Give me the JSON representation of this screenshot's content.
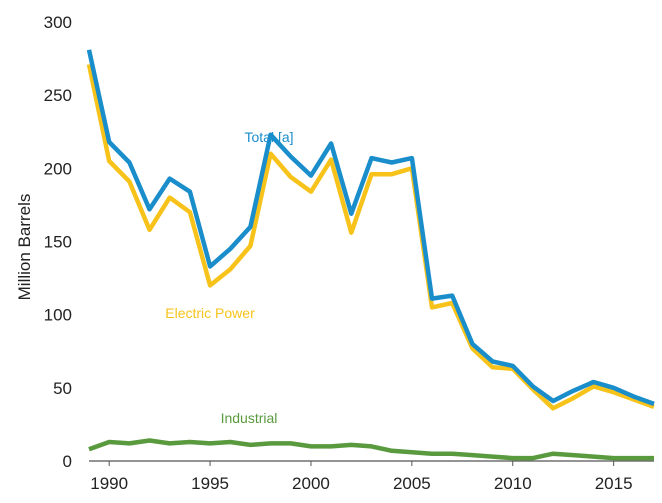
{
  "chart_data": {
    "type": "line",
    "ylabel": "Million Barrels",
    "xlim": [
      1989,
      2017
    ],
    "ylim": [
      0,
      300
    ],
    "x_ticks": [
      1990,
      1995,
      2000,
      2005,
      2010,
      2015
    ],
    "y_ticks": [
      0,
      50,
      100,
      150,
      200,
      250,
      300
    ],
    "grid": false,
    "legend": "inline labels",
    "x": [
      1989,
      1990,
      1991,
      1992,
      1993,
      1994,
      1995,
      1996,
      1997,
      1998,
      1999,
      2000,
      2001,
      2002,
      2003,
      2004,
      2005,
      2006,
      2007,
      2008,
      2009,
      2010,
      2011,
      2012,
      2013,
      2014,
      2015,
      2016,
      2017
    ],
    "series": [
      {
        "name": "Total [a]",
        "color": "#1a8dcb",
        "values": [
          281,
          218,
          204,
          172,
          193,
          184,
          133,
          145,
          160,
          223,
          208,
          195,
          217,
          169,
          207,
          204,
          207,
          111,
          113,
          80,
          68,
          65,
          51,
          41,
          48,
          54,
          50,
          44,
          39
        ]
      },
      {
        "name": "Electric Power",
        "color": "#f7c31a",
        "values": [
          271,
          205,
          191,
          158,
          180,
          170,
          120,
          131,
          147,
          210,
          194,
          184,
          206,
          156,
          196,
          196,
          200,
          105,
          108,
          77,
          64,
          63,
          49,
          36,
          43,
          51,
          47,
          42,
          37
        ]
      },
      {
        "name": "Industrial",
        "color": "#5a9a3e",
        "values": [
          8,
          13,
          12,
          14,
          12,
          13,
          12,
          13,
          11,
          12,
          12,
          10,
          10,
          11,
          10,
          7,
          6,
          5,
          5,
          4,
          3,
          2,
          2,
          5,
          4,
          3,
          2,
          2,
          2
        ]
      }
    ]
  }
}
